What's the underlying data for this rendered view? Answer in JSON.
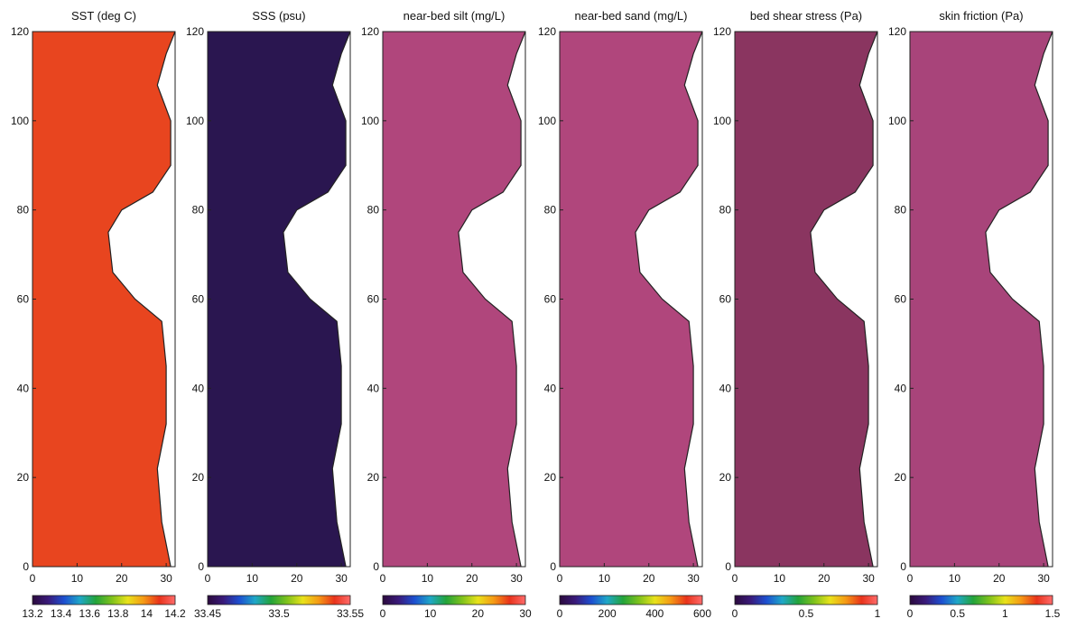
{
  "chart_data": [
    {
      "type": "heatmap",
      "title": "SST (deg C)",
      "xlim": [
        0,
        32
      ],
      "ylim": [
        0,
        120
      ],
      "xticks": [
        "0",
        "10",
        "20",
        "30"
      ],
      "yticks": [
        "0",
        "20",
        "40",
        "60",
        "80",
        "100",
        "120"
      ],
      "colorbar": {
        "range": [
          13.2,
          14.2
        ],
        "ticks": [
          "13.2",
          "13.4",
          "13.6",
          "13.8",
          "14",
          "14.2"
        ],
        "positions": [
          13.2,
          13.4,
          13.6,
          13.8,
          14.0,
          14.2
        ]
      },
      "field_color": "#e8451f"
    },
    {
      "type": "heatmap",
      "title": "SSS (psu)",
      "xlim": [
        0,
        32
      ],
      "ylim": [
        0,
        120
      ],
      "xticks": [
        "0",
        "10",
        "20",
        "30"
      ],
      "yticks": [
        "0",
        "20",
        "40",
        "60",
        "80",
        "100",
        "120"
      ],
      "colorbar": {
        "range": [
          33.45,
          33.55
        ],
        "ticks": [
          "33.45",
          "33.5",
          "33.55"
        ],
        "positions": [
          33.45,
          33.5,
          33.55
        ]
      },
      "field_color": "#2a1650"
    },
    {
      "type": "heatmap",
      "title": "near-bed silt (mg/L)",
      "xlim": [
        0,
        32
      ],
      "ylim": [
        0,
        120
      ],
      "xticks": [
        "0",
        "10",
        "20",
        "30"
      ],
      "yticks": [
        "0",
        "20",
        "40",
        "60",
        "80",
        "100",
        "120"
      ],
      "colorbar": {
        "range": [
          0,
          30
        ],
        "ticks": [
          "0",
          "10",
          "20",
          "30"
        ],
        "positions": [
          0,
          10,
          20,
          30
        ]
      },
      "field_color": "#b0467c"
    },
    {
      "type": "heatmap",
      "title": "near-bed sand (mg/L)",
      "xlim": [
        0,
        32
      ],
      "ylim": [
        0,
        120
      ],
      "xticks": [
        "0",
        "10",
        "20",
        "30"
      ],
      "yticks": [
        "0",
        "20",
        "40",
        "60",
        "80",
        "100",
        "120"
      ],
      "colorbar": {
        "range": [
          0,
          600
        ],
        "ticks": [
          "0",
          "200",
          "400",
          "600"
        ],
        "positions": [
          0,
          200,
          400,
          600
        ]
      },
      "field_color": "#b0467c"
    },
    {
      "type": "heatmap",
      "title": "bed shear stress (Pa)",
      "xlim": [
        0,
        32
      ],
      "ylim": [
        0,
        120
      ],
      "xticks": [
        "0",
        "10",
        "20",
        "30"
      ],
      "yticks": [
        "0",
        "20",
        "40",
        "60",
        "80",
        "100",
        "120"
      ],
      "colorbar": {
        "range": [
          0,
          1
        ],
        "ticks": [
          "0",
          "0.5",
          "1"
        ],
        "positions": [
          0,
          0.5,
          1
        ]
      },
      "field_color": "#8a3560"
    },
    {
      "type": "heatmap",
      "title": "skin friction (Pa)",
      "xlim": [
        0,
        32
      ],
      "ylim": [
        0,
        120
      ],
      "xticks": [
        "0",
        "10",
        "20",
        "30"
      ],
      "yticks": [
        "0",
        "20",
        "40",
        "60",
        "80",
        "100",
        "120"
      ],
      "colorbar": {
        "range": [
          0,
          1.5
        ],
        "ticks": [
          "0",
          "0.5",
          "1",
          "1.5"
        ],
        "positions": [
          0,
          0.5,
          1,
          1.5
        ]
      },
      "field_color": "#a8447a"
    }
  ],
  "coastline": [
    [
      32,
      120
    ],
    [
      30,
      115
    ],
    [
      28,
      108
    ],
    [
      31,
      100
    ],
    [
      31,
      90
    ],
    [
      27,
      84
    ],
    [
      20,
      80
    ],
    [
      17,
      75
    ],
    [
      18,
      66
    ],
    [
      23,
      60
    ],
    [
      29,
      55
    ],
    [
      30,
      45
    ],
    [
      30,
      32
    ],
    [
      28,
      22
    ],
    [
      29,
      10
    ],
    [
      31,
      0
    ]
  ],
  "colormap": [
    "#2b0a3d",
    "#3a1a7a",
    "#1d4fd0",
    "#1fa7c7",
    "#23a33a",
    "#7ec21c",
    "#e8e21b",
    "#f59a15",
    "#e8331b",
    "#ff6b6b"
  ]
}
